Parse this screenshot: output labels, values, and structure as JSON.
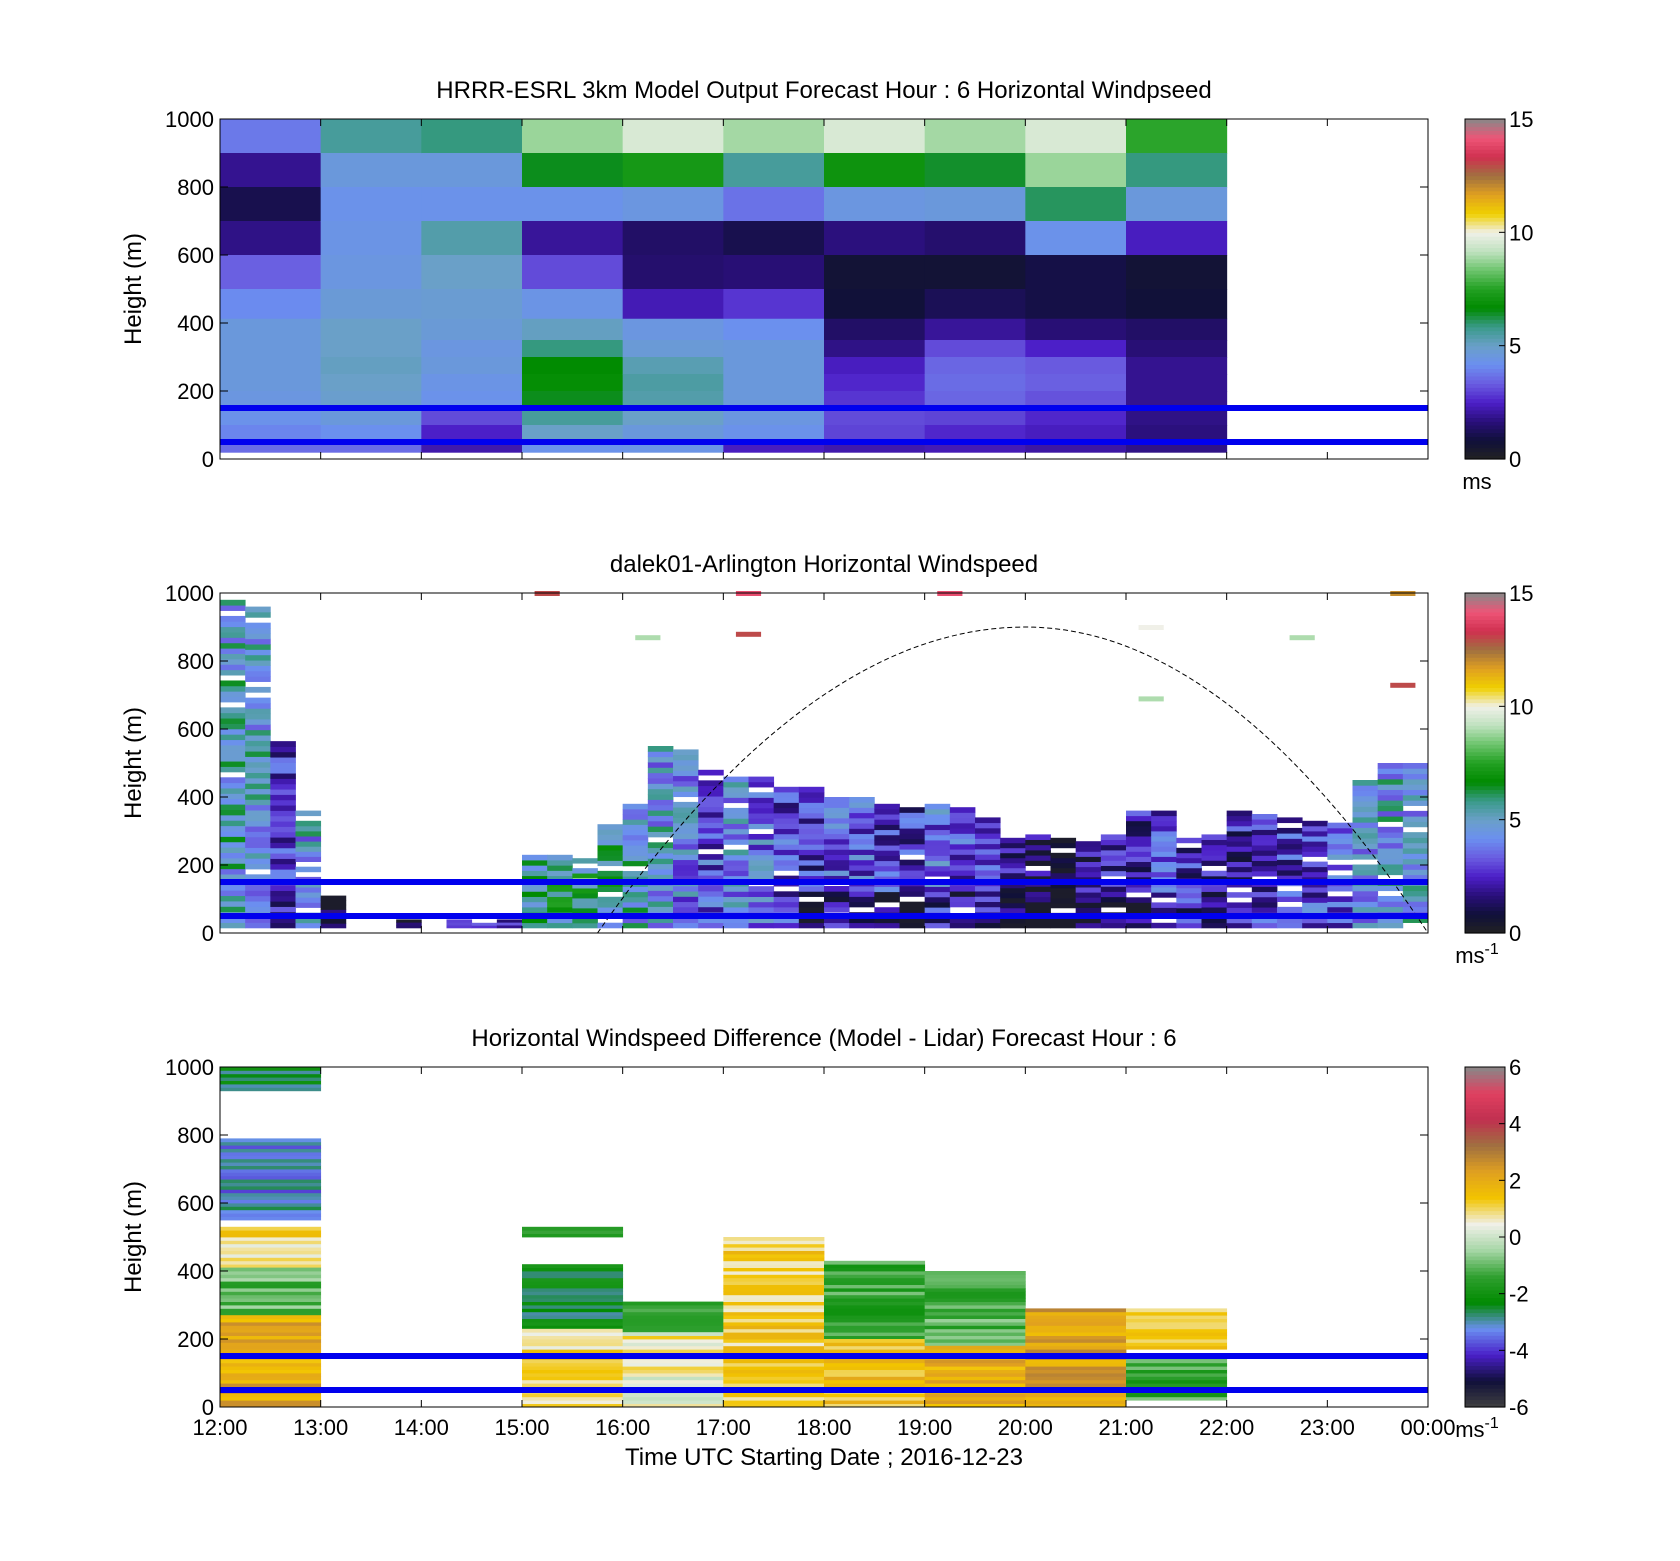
{
  "colors": {
    "windspeed_scale": [
      "#222222",
      "#10103a",
      "#2a0f7a",
      "#4c1fc8",
      "#6a5ce0",
      "#6b8ff0",
      "#6aa0c8",
      "#3a9a8a",
      "#008a00",
      "#22a022",
      "#6cc46c",
      "#bfe2bf",
      "#f0f0e8",
      "#f0d000",
      "#e0a020",
      "#a07040",
      "#d03050",
      "#ee5577",
      "#888888"
    ],
    "difference_scale": [
      "#404040",
      "#10103a",
      "#4a1fc8",
      "#6a8ff0",
      "#008a00",
      "#30a030",
      "#a6d6a6",
      "#f0f0e8",
      "#f2c400",
      "#e0a020",
      "#a07040",
      "#c03050",
      "#e04060",
      "#888888"
    ],
    "boundary_line": "#0000ee"
  },
  "charts": [
    {
      "title": "HRRR-ESRL 3km Model Output   Forecast Hour : 6 Horizontal Windpseed",
      "ylabel": "Height (m)",
      "colorbar": {
        "ticks": [
          "15",
          "10",
          "5",
          "0"
        ],
        "unit": "ms"
      }
    },
    {
      "title": "dalek01-Arlington  Horizontal Windspeed",
      "ylabel": "Height (m)",
      "colorbar": {
        "ticks": [
          "15",
          "10",
          "5",
          "0"
        ],
        "unit": "ms",
        "unit_exp": "-1"
      }
    },
    {
      "title": "Horizontal Windspeed Difference (Model - Lidar) Forecast Hour : 6",
      "ylabel": "Height (m)",
      "xlabel": "Time UTC  Starting Date ; 2016-12-23",
      "colorbar": {
        "ticks": [
          "6",
          "4",
          "2",
          "0",
          "-2",
          "-4",
          "-6"
        ],
        "unit": "ms",
        "unit_exp": "-1"
      }
    }
  ],
  "y_ticks": [
    "1000",
    "800",
    "600",
    "400",
    "200",
    "0"
  ],
  "x_ticks": [
    "12:00",
    "13:00",
    "14:00",
    "15:00",
    "16:00",
    "17:00",
    "18:00",
    "19:00",
    "20:00",
    "21:00",
    "22:00",
    "23:00",
    "00:00"
  ],
  "chart_data": [
    {
      "type": "heatmap",
      "title": "HRRR-ESRL 3km Model Output   Forecast Hour : 6 Horizontal Windpseed",
      "ylabel": "Height (m)",
      "ylim": [
        0,
        1000
      ],
      "xlim": [
        "12:00",
        "00:00"
      ],
      "colorbar_range": [
        0,
        15
      ],
      "colorbar_unit": "ms",
      "x_categories": [
        "12:00",
        "13:00",
        "14:00",
        "15:00",
        "16:00",
        "17:00",
        "18:00",
        "19:00",
        "20:00",
        "21:00"
      ],
      "height_levels": [
        950,
        850,
        750,
        650,
        550,
        450,
        375,
        325,
        275,
        225,
        175,
        125,
        75,
        40
      ],
      "values_ms": [
        [
          3.8,
          5.6,
          5.9,
          8.8,
          9.6,
          8.9,
          9.6,
          8.9,
          9.6,
          7.6
        ],
        [
          1.9,
          4.6,
          4.6,
          6.5,
          7.2,
          5.6,
          7.0,
          6.4,
          8.8,
          5.9
        ],
        [
          1.1,
          4.3,
          4.3,
          4.3,
          4.5,
          3.7,
          4.5,
          4.6,
          6.1,
          4.6
        ],
        [
          1.8,
          4.4,
          5.4,
          2.0,
          1.4,
          1.1,
          1.7,
          1.5,
          4.3,
          2.4
        ],
        [
          3.4,
          4.5,
          5.0,
          3.1,
          1.5,
          1.6,
          0.7,
          0.7,
          1.0,
          0.7
        ],
        [
          4.1,
          4.7,
          4.8,
          4.4,
          2.3,
          2.8,
          0.8,
          1.2,
          1.0,
          0.8
        ],
        [
          4.6,
          5.0,
          4.7,
          5.1,
          4.5,
          4.2,
          1.4,
          2.0,
          1.6,
          1.4
        ],
        [
          4.6,
          5.0,
          4.5,
          5.9,
          4.7,
          4.6,
          1.8,
          3.1,
          2.5,
          1.6
        ],
        [
          4.6,
          5.1,
          4.6,
          6.7,
          5.3,
          4.6,
          2.4,
          3.5,
          3.3,
          1.9
        ],
        [
          4.6,
          5.0,
          4.4,
          6.8,
          5.5,
          4.6,
          2.6,
          3.6,
          3.4,
          1.9
        ],
        [
          4.5,
          4.9,
          4.3,
          6.5,
          5.4,
          4.6,
          2.8,
          3.5,
          3.2,
          1.9
        ],
        [
          4.3,
          4.6,
          3.1,
          5.6,
          5.0,
          4.5,
          3.1,
          3.0,
          2.6,
          1.8
        ],
        [
          4.0,
          4.2,
          2.5,
          5.0,
          4.6,
          4.3,
          3.0,
          2.6,
          2.4,
          1.7
        ],
        [
          3.6,
          3.6,
          2.2,
          4.3,
          4.4,
          2.4,
          2.2,
          2.3,
          2.1,
          1.8
        ]
      ],
      "boundary_lines_m": [
        150,
        50
      ]
    },
    {
      "type": "heatmap",
      "title": "dalek01-Arlington  Horizontal Windspeed",
      "ylabel": "Height (m)",
      "ylim": [
        0,
        1000
      ],
      "xlim": [
        "12:00",
        "00:00"
      ],
      "colorbar_range": [
        0,
        15
      ],
      "colorbar_unit": "ms-1",
      "time_bins_hours": [
        12.0,
        12.25,
        12.5,
        12.75,
        13.0,
        13.25,
        13.5,
        13.75,
        14.0,
        14.25,
        14.5,
        14.75,
        15.0,
        15.25,
        15.5,
        15.75,
        16.0,
        16.25,
        16.5,
        16.75,
        17.0,
        17.25,
        17.5,
        17.75,
        18.0,
        18.25,
        18.5,
        18.75,
        19.0,
        19.25,
        19.5,
        19.75,
        20.0,
        20.25,
        20.5,
        20.75,
        21.0,
        21.25,
        21.5,
        21.75,
        22.0,
        22.25,
        22.5,
        22.75,
        23.0,
        23.25,
        23.5,
        23.75
      ],
      "column_top_heights_m": [
        980,
        960,
        580,
        360,
        110,
        0,
        0,
        40,
        0,
        40,
        30,
        40,
        230,
        230,
        220,
        320,
        380,
        550,
        540,
        480,
        460,
        460,
        430,
        430,
        400,
        400,
        380,
        370,
        380,
        370,
        340,
        280,
        290,
        280,
        270,
        290,
        360,
        360,
        280,
        290,
        360,
        350,
        340,
        330,
        340,
        450,
        500,
        500
      ],
      "column_mean_speed_ms": [
        5.0,
        4.8,
        2.6,
        4.6,
        1.2,
        0,
        0,
        1.5,
        0,
        4.2,
        4.0,
        2.0,
        5.8,
        6.0,
        6.1,
        5.6,
        4.9,
        4.6,
        4.0,
        3.2,
        4.2,
        3.8,
        3.0,
        2.6,
        3.2,
        3.4,
        2.8,
        2.6,
        3.6,
        3.2,
        3.1,
        2.0,
        1.6,
        1.5,
        1.7,
        2.5,
        2.4,
        3.0,
        2.4,
        2.0,
        2.2,
        2.7,
        2.8,
        3.0,
        3.4,
        4.3,
        4.7,
        4.8
      ],
      "sparse_high_returns": [
        {
          "time": "15:00",
          "height_m": 1000,
          "speed_ms": 13
        },
        {
          "time": "16:00",
          "height_m": 870,
          "speed_ms": 9
        },
        {
          "time": "17:00",
          "height_m": 880,
          "speed_ms": 13
        },
        {
          "time": "17:00",
          "height_m": 1000,
          "speed_ms": 14
        },
        {
          "time": "19:00",
          "height_m": 1000,
          "speed_ms": 14
        },
        {
          "time": "21:00",
          "height_m": 900,
          "speed_ms": 10
        },
        {
          "time": "21:00",
          "height_m": 690,
          "speed_ms": 9
        },
        {
          "time": "22:30",
          "height_m": 870,
          "speed_ms": 9
        },
        {
          "time": "23:30",
          "height_m": 1000,
          "speed_ms": 12
        },
        {
          "time": "23:30",
          "height_m": 730,
          "speed_ms": 13
        }
      ],
      "solar_elevation_curve": {
        "start": "15:45",
        "peak": "20:00",
        "peak_height_m": 900,
        "end": "00:00",
        "style": "dashed"
      },
      "boundary_lines_m": [
        150,
        50
      ]
    },
    {
      "type": "heatmap",
      "title": "Horizontal Windspeed Difference (Model - Lidar) Forecast Hour : 6",
      "ylabel": "Height (m)",
      "xlabel": "Time UTC  Starting Date ; 2016-12-23",
      "ylim": [
        0,
        1000
      ],
      "xlim": [
        "12:00",
        "00:00"
      ],
      "colorbar_range": [
        -6,
        6
      ],
      "colorbar_unit": "ms-1",
      "x_categories": [
        "12:00",
        "15:00",
        "16:00",
        "17:00",
        "18:00",
        "19:00",
        "20:00",
        "21:00"
      ],
      "column_segments": [
        {
          "time": "12:00",
          "segments": [
            {
              "from_m": 930,
              "to_m": 1000,
              "diff_ms": -2.6
            },
            {
              "from_m": 550,
              "to_m": 790,
              "diff_ms": -3.2
            },
            {
              "from_m": 410,
              "to_m": 530,
              "diff_ms": 1.0
            },
            {
              "from_m": 270,
              "to_m": 410,
              "diff_ms": -1.0
            },
            {
              "from_m": 0,
              "to_m": 270,
              "diff_ms": 2.0
            }
          ]
        },
        {
          "time": "15:00",
          "segments": [
            {
              "from_m": 500,
              "to_m": 530,
              "diff_ms": -1.6
            },
            {
              "from_m": 230,
              "to_m": 420,
              "diff_ms": -2.4
            },
            {
              "from_m": 0,
              "to_m": 230,
              "diff_ms": 1.0
            }
          ]
        },
        {
          "time": "16:00",
          "segments": [
            {
              "from_m": 220,
              "to_m": 310,
              "diff_ms": -1.0
            },
            {
              "from_m": 0,
              "to_m": 220,
              "diff_ms": 0.6
            }
          ]
        },
        {
          "time": "17:00",
          "segments": [
            {
              "from_m": 0,
              "to_m": 500,
              "diff_ms": 1.2
            }
          ]
        },
        {
          "time": "18:00",
          "segments": [
            {
              "from_m": 200,
              "to_m": 430,
              "diff_ms": -1.4
            },
            {
              "from_m": 0,
              "to_m": 200,
              "diff_ms": 1.6
            }
          ]
        },
        {
          "time": "19:00",
          "segments": [
            {
              "from_m": 180,
              "to_m": 400,
              "diff_ms": -1.2
            },
            {
              "from_m": 0,
              "to_m": 180,
              "diff_ms": 2.0
            }
          ]
        },
        {
          "time": "20:00",
          "segments": [
            {
              "from_m": 0,
              "to_m": 290,
              "diff_ms": 2.2
            }
          ]
        },
        {
          "time": "21:00",
          "segments": [
            {
              "from_m": 170,
              "to_m": 290,
              "diff_ms": 1.4
            },
            {
              "from_m": 20,
              "to_m": 150,
              "diff_ms": -1.4
            }
          ]
        }
      ],
      "boundary_lines_m": [
        150,
        50
      ]
    }
  ]
}
